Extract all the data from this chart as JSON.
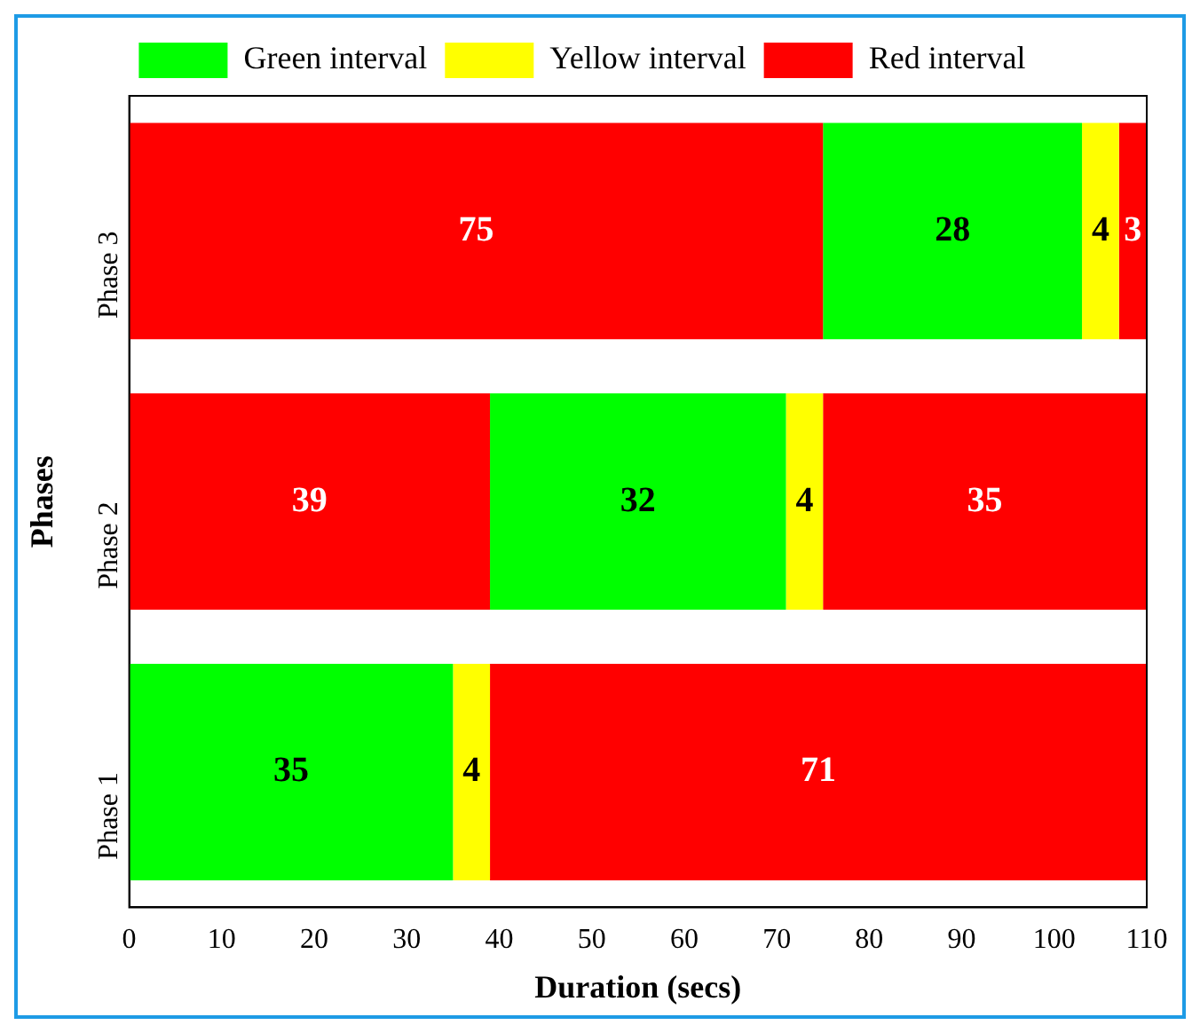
{
  "chart_data": {
    "type": "bar",
    "orientation": "horizontal",
    "stacked": true,
    "xlabel": "Duration (secs)",
    "ylabel": "Phases",
    "categories": [
      "Phase 3",
      "Phase 2",
      "Phase 1"
    ],
    "series": [
      {
        "color": "#ff0000",
        "values": [
          75,
          39,
          null
        ]
      },
      {
        "name": "Green interval",
        "color": "#00ff00",
        "values": [
          28,
          32,
          35
        ]
      },
      {
        "name": "Yellow interval",
        "color": "#ffff00",
        "values": [
          4,
          4,
          4
        ]
      },
      {
        "name": "Red interval",
        "color": "#ff0000",
        "values": [
          3,
          35,
          71
        ]
      }
    ],
    "xlim": [
      0,
      110
    ],
    "xticks": [
      0,
      10,
      20,
      30,
      40,
      50,
      60,
      70,
      80,
      90,
      100,
      110
    ],
    "data_labels": true,
    "legend": "top",
    "grid": false
  }
}
